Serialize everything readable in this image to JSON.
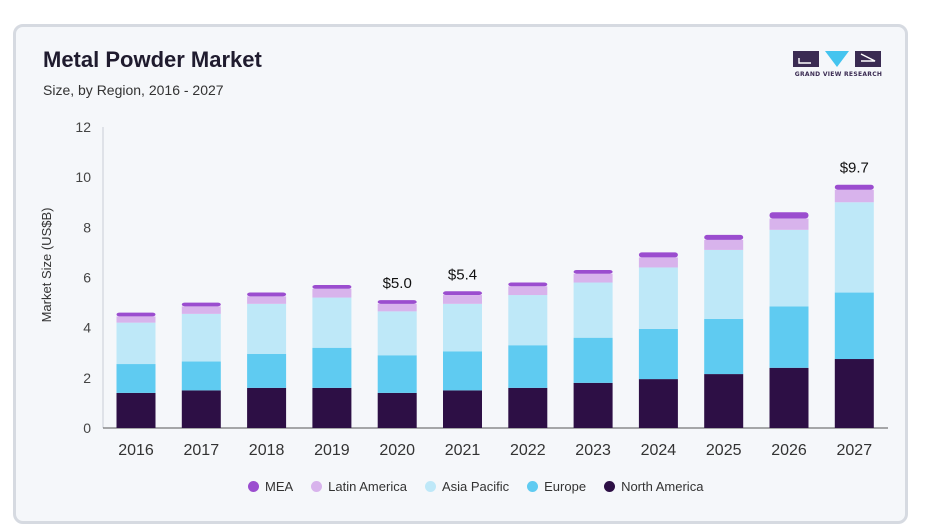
{
  "header": {
    "title": "Metal Powder Market",
    "subtitle": "Size, by Region, 2016 - 2027"
  },
  "logo": {
    "text": "GRAND VIEW RESEARCH"
  },
  "colors": {
    "MEA": "#9b4dcf",
    "Latin America": "#d8b3ec",
    "Asia Pacific": "#bee8f8",
    "Europe": "#5fcbf1",
    "North America": "#2d0f45"
  },
  "chart_data": {
    "type": "bar",
    "stacked": true,
    "categories": [
      "2016",
      "2017",
      "2018",
      "2019",
      "2020",
      "2021",
      "2022",
      "2023",
      "2024",
      "2025",
      "2026",
      "2027"
    ],
    "series": [
      {
        "name": "North America",
        "values": [
          1.4,
          1.5,
          1.6,
          1.6,
          1.4,
          1.5,
          1.6,
          1.8,
          1.95,
          2.15,
          2.4,
          2.75
        ]
      },
      {
        "name": "Europe",
        "values": [
          1.15,
          1.15,
          1.35,
          1.6,
          1.5,
          1.55,
          1.7,
          1.8,
          2.0,
          2.2,
          2.45,
          2.65
        ]
      },
      {
        "name": "Asia Pacific",
        "values": [
          1.65,
          1.9,
          2.0,
          2.0,
          1.75,
          1.9,
          2.0,
          2.2,
          2.45,
          2.75,
          3.05,
          3.6
        ]
      },
      {
        "name": "Latin America",
        "values": [
          0.25,
          0.3,
          0.3,
          0.35,
          0.3,
          0.35,
          0.35,
          0.35,
          0.4,
          0.4,
          0.45,
          0.5
        ]
      },
      {
        "name": "MEA",
        "values": [
          0.15,
          0.15,
          0.15,
          0.15,
          0.15,
          0.15,
          0.15,
          0.15,
          0.2,
          0.2,
          0.25,
          0.2
        ]
      }
    ],
    "annotations": [
      {
        "category": "2020",
        "text": "$5.0"
      },
      {
        "category": "2021",
        "text": "$5.4"
      },
      {
        "category": "2027",
        "text": "$9.7"
      }
    ],
    "title": "Metal Powder Market",
    "subtitle": "Size, by Region, 2016 - 2027",
    "xlabel": "",
    "ylabel": "Market Size (US$B)",
    "ylim": [
      0,
      12
    ],
    "yticks": [
      0,
      2,
      4,
      6,
      8,
      10,
      12
    ],
    "grid": false,
    "legend_position": "bottom"
  },
  "legend": {
    "items": [
      {
        "label": "MEA",
        "color": "#9b4dcf"
      },
      {
        "label": "Latin America",
        "color": "#d8b3ec"
      },
      {
        "label": "Asia Pacific",
        "color": "#bee8f8"
      },
      {
        "label": "Europe",
        "color": "#5fcbf1"
      },
      {
        "label": "North America",
        "color": "#2d0f45"
      }
    ]
  }
}
